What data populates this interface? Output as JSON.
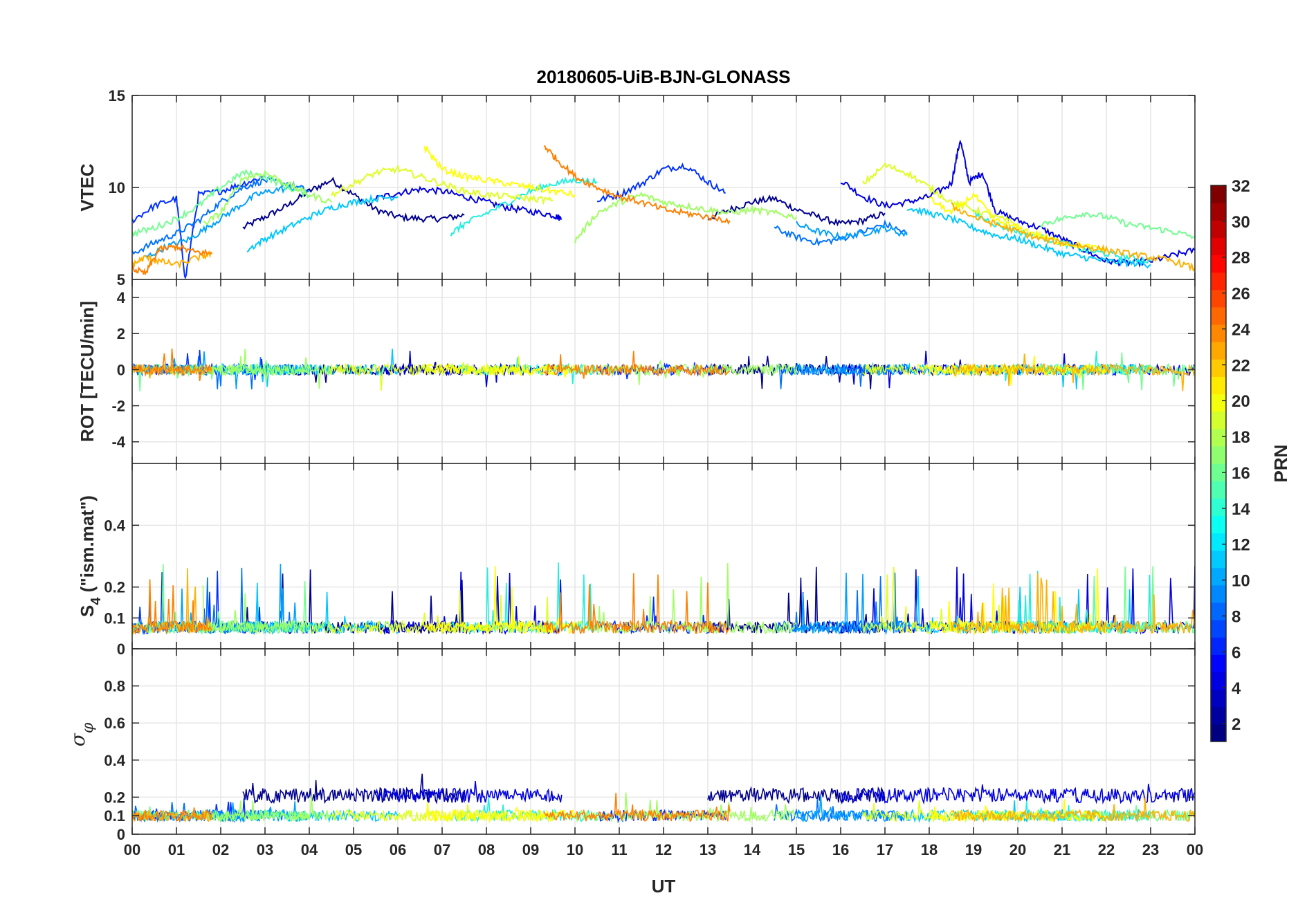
{
  "chart_data": {
    "type": "line",
    "title": "20180605-UiB-BJN-GLONASS",
    "xlabel": "UT",
    "x_tick_labels": [
      "00",
      "01",
      "02",
      "03",
      "04",
      "05",
      "06",
      "07",
      "08",
      "09",
      "10",
      "11",
      "12",
      "13",
      "14",
      "15",
      "16",
      "17",
      "18",
      "19",
      "20",
      "21",
      "22",
      "23",
      "00"
    ],
    "xlim_hours": [
      0,
      24
    ],
    "grid": true,
    "panels": [
      {
        "id": "vtec",
        "ylabel": "VTEC",
        "ylim": [
          5,
          15
        ],
        "y_ticks": [
          5,
          10,
          15
        ],
        "y_tick_labels": [
          "5",
          "10",
          "15"
        ]
      },
      {
        "id": "rot",
        "ylabel": "ROT [TECU/min]",
        "ylim": [
          -5.2,
          5
        ],
        "y_ticks": [
          -4,
          -2,
          0,
          2,
          4
        ],
        "y_tick_labels": [
          "-4",
          "-2",
          "0",
          "2",
          "4"
        ]
      },
      {
        "id": "s4",
        "ylabel_main": "S",
        "ylabel_sub": "4",
        "ylabel_rest": " (\"ism.mat\")",
        "ylim": [
          0,
          0.6
        ],
        "y_ticks": [
          0,
          0.1,
          0.2,
          0.4
        ],
        "y_tick_labels": [
          "0",
          "0.1",
          "0.2",
          "0.4"
        ]
      },
      {
        "id": "sigma",
        "ylabel_main": "σ",
        "ylabel_sub": "φ",
        "ylim": [
          0,
          1
        ],
        "y_ticks": [
          0,
          0.1,
          0.2,
          0.4,
          0.6,
          0.8
        ],
        "y_tick_labels": [
          "0",
          "0.1",
          "0.2",
          "0.4",
          "0.6",
          "0.8"
        ]
      }
    ],
    "colorbar": {
      "label": "PRN",
      "colormap": "jet",
      "range": [
        1,
        32
      ],
      "tick_labels": [
        "2",
        "4",
        "6",
        "8",
        "10",
        "12",
        "14",
        "16",
        "18",
        "20",
        "22",
        "24",
        "26",
        "28",
        "30",
        "32"
      ]
    },
    "series": [
      {
        "prn": 1,
        "color": "#00008f",
        "vtec_segments": [
          {
            "x": [
              2.5,
              3.0,
              3.5,
              4.0,
              4.5,
              5.0,
              5.5,
              6.0,
              6.5,
              7.0,
              7.5
            ],
            "y": [
              7.8,
              8.4,
              9.0,
              9.8,
              10.4,
              9.6,
              8.8,
              8.4,
              8.3,
              8.3,
              8.5
            ]
          },
          {
            "x": [
              13.0,
              13.5,
              14.0,
              14.5,
              15.0,
              15.5,
              16.0,
              16.5,
              17.0
            ],
            "y": [
              8.3,
              8.8,
              9.2,
              9.4,
              8.8,
              8.4,
              8.0,
              8.2,
              8.6
            ]
          }
        ]
      },
      {
        "prn": 3,
        "color": "#0000df",
        "vtec_segments": [
          {
            "x": [
              5.5,
              6.0,
              6.5,
              7.0,
              7.5,
              8.0,
              8.5,
              9.0,
              9.5,
              9.7
            ],
            "y": [
              9.4,
              9.7,
              9.9,
              9.8,
              9.5,
              9.2,
              8.9,
              8.7,
              8.5,
              8.3
            ]
          },
          {
            "x": [
              16.0,
              16.5,
              17.0,
              17.5,
              18.0,
              18.5,
              18.7,
              18.9,
              19.2,
              19.5,
              20.0,
              20.5,
              21.0,
              21.5,
              22.0,
              22.5,
              23.0,
              23.5,
              24.0
            ],
            "y": [
              10.4,
              9.5,
              9.0,
              9.2,
              9.5,
              10.2,
              12.6,
              10.3,
              10.8,
              8.7,
              8.2,
              7.8,
              7.2,
              6.6,
              6.0,
              5.9,
              6.0,
              6.3,
              6.6
            ]
          }
        ]
      },
      {
        "prn": 5,
        "color": "#0030ff",
        "vtec_segments": [
          {
            "x": [
              0.0,
              0.5,
              1.0,
              1.2,
              1.5,
              2.0,
              2.5,
              3.0
            ],
            "y": [
              8.2,
              9.0,
              9.4,
              5.0,
              9.6,
              9.8,
              10.2,
              10.6
            ]
          },
          {
            "x": [
              10.5,
              11.0,
              11.5,
              12.0,
              12.5,
              13.0,
              13.4
            ],
            "y": [
              9.3,
              9.6,
              10.2,
              11.0,
              11.2,
              10.3,
              9.7
            ]
          }
        ]
      },
      {
        "prn": 7,
        "color": "#0070ff",
        "vtec_segments": [
          {
            "x": [
              0.0,
              0.5,
              1.0,
              1.5,
              2.0,
              2.5,
              3.0,
              3.5,
              4.0
            ],
            "y": [
              6.4,
              7.0,
              7.5,
              8.2,
              9.2,
              10.0,
              10.4,
              10.2,
              9.8
            ]
          },
          {
            "x": [
              14.5,
              15.0,
              15.5,
              16.0,
              16.5,
              17.0,
              17.5
            ],
            "y": [
              7.8,
              7.3,
              7.0,
              7.2,
              7.6,
              8.0,
              7.5
            ]
          }
        ]
      },
      {
        "prn": 9,
        "color": "#00a0ff",
        "vtec_segments": [
          {
            "x": [
              0.3,
              0.8,
              1.3,
              1.8,
              2.3,
              2.8,
              3.3,
              3.8
            ],
            "y": [
              6.2,
              6.8,
              7.2,
              8.0,
              8.8,
              9.6,
              9.9,
              10.0
            ]
          },
          {
            "x": [
              15.0,
              15.5,
              16.0,
              16.5,
              17.0,
              17.5
            ],
            "y": [
              8.0,
              7.6,
              7.3,
              7.5,
              7.8,
              7.4
            ]
          }
        ]
      },
      {
        "prn": 11,
        "color": "#00c8ff",
        "vtec_segments": [
          {
            "x": [
              2.6,
              3.0,
              3.5,
              4.0,
              4.5,
              5.0,
              5.5,
              6.0
            ],
            "y": [
              6.6,
              7.2,
              7.8,
              8.4,
              8.9,
              9.2,
              9.4,
              9.5
            ]
          },
          {
            "x": [
              17.5,
              18.0,
              18.5,
              19.0,
              19.5,
              20.0,
              20.5,
              21.0,
              21.5,
              22.0,
              22.5,
              23.0
            ],
            "y": [
              8.9,
              8.6,
              8.3,
              7.8,
              7.4,
              7.2,
              6.8,
              6.4,
              6.2,
              6.0,
              5.9,
              5.8
            ]
          }
        ]
      },
      {
        "prn": 13,
        "color": "#20efdf",
        "vtec_segments": [
          {
            "x": [
              7.2,
              7.5,
              8.0,
              8.5,
              9.0,
              9.5,
              10.0,
              10.5
            ],
            "y": [
              7.5,
              8.0,
              8.6,
              9.2,
              9.8,
              10.2,
              10.4,
              10.3
            ]
          },
          {
            "x": [
              19.0,
              19.5,
              20.0,
              20.5,
              21.0,
              21.5,
              22.0,
              22.5,
              23.0
            ],
            "y": [
              8.6,
              8.0,
              7.6,
              7.3,
              7.0,
              6.6,
              6.4,
              6.2,
              6.0
            ]
          }
        ]
      },
      {
        "prn": 15,
        "color": "#70ff8f",
        "vtec_segments": [
          {
            "x": [
              0.0,
              0.5,
              1.0,
              1.5,
              2.0,
              2.5,
              3.0,
              3.5,
              4.0
            ],
            "y": [
              7.5,
              7.8,
              8.3,
              9.0,
              10.0,
              10.8,
              10.6,
              10.0,
              9.6
            ]
          },
          {
            "x": [
              20.5,
              21.0,
              21.5,
              22.0,
              22.5,
              23.0,
              23.5,
              24.0
            ],
            "y": [
              8.0,
              8.3,
              8.6,
              8.4,
              8.0,
              7.8,
              7.6,
              7.3
            ]
          }
        ]
      },
      {
        "prn": 17,
        "color": "#9fff60",
        "vtec_segments": [
          {
            "x": [
              1.6,
              2.0,
              2.5,
              3.0,
              3.5,
              4.0,
              4.5
            ],
            "y": [
              8.0,
              8.6,
              10.5,
              10.8,
              10.2,
              9.6,
              9.2
            ]
          },
          {
            "x": [
              10.0,
              10.5,
              11.0,
              11.5,
              12.0,
              12.5,
              13.0,
              13.5,
              14.0,
              14.5,
              15.0
            ],
            "y": [
              7.1,
              8.6,
              9.2,
              9.6,
              9.2,
              9.0,
              8.8,
              8.6,
              8.8,
              8.6,
              8.4
            ]
          }
        ]
      },
      {
        "prn": 19,
        "color": "#dfff20",
        "vtec_segments": [
          {
            "x": [
              4.5,
              5.0,
              5.5,
              6.0,
              6.5,
              7.0,
              7.5,
              8.0,
              8.5,
              9.0,
              9.5
            ],
            "y": [
              9.6,
              10.2,
              10.8,
              11.0,
              10.6,
              10.2,
              9.8,
              9.6,
              9.5,
              9.4,
              9.3
            ]
          },
          {
            "x": [
              16.5,
              17.0,
              17.5,
              18.0,
              18.5,
              19.0,
              19.5,
              20.0
            ],
            "y": [
              10.2,
              11.2,
              10.8,
              10.0,
              9.2,
              8.8,
              8.4,
              8.0
            ]
          }
        ]
      },
      {
        "prn": 21,
        "color": "#ffff00",
        "vtec_segments": [
          {
            "x": [
              6.6,
              7.0,
              7.5,
              8.0,
              8.5,
              9.0,
              9.5,
              10.0
            ],
            "y": [
              12.2,
              11.0,
              10.6,
              10.4,
              10.2,
              10.0,
              9.8,
              9.6
            ]
          },
          {
            "x": [
              18.0,
              18.5,
              19.0,
              19.5,
              20.0,
              20.5,
              21.0,
              21.5,
              22.0
            ],
            "y": [
              9.4,
              8.6,
              9.6,
              8.2,
              7.8,
              7.4,
              7.0,
              6.8,
              6.6
            ]
          }
        ]
      },
      {
        "prn": 23,
        "color": "#ffb000",
        "vtec_segments": [
          {
            "x": [
              0.0,
              0.3,
              0.6,
              1.0,
              1.5,
              1.8
            ],
            "y": [
              5.8,
              6.2,
              6.0,
              5.8,
              6.2,
              6.4
            ]
          },
          {
            "x": [
              18.5,
              19.0,
              19.5,
              20.0,
              20.5,
              21.0,
              21.5,
              22.0,
              22.5,
              23.0,
              23.5,
              24.0
            ],
            "y": [
              9.0,
              8.4,
              8.0,
              7.6,
              7.2,
              7.0,
              6.8,
              6.6,
              6.4,
              6.2,
              6.0,
              5.6
            ]
          }
        ]
      },
      {
        "prn": 24,
        "color": "#ff8000",
        "vtec_segments": [
          {
            "x": [
              0.0,
              0.3,
              0.6,
              1.0,
              1.4,
              1.8
            ],
            "y": [
              5.6,
              5.3,
              6.6,
              6.8,
              6.5,
              6.4
            ]
          },
          {
            "x": [
              9.3,
              9.6,
              10.0,
              10.5,
              11.0,
              11.5,
              12.0,
              12.5,
              13.0,
              13.5
            ],
            "y": [
              12.3,
              11.5,
              10.6,
              10.0,
              9.5,
              9.2,
              8.8,
              8.6,
              8.4,
              8.2
            ]
          }
        ]
      }
    ]
  }
}
